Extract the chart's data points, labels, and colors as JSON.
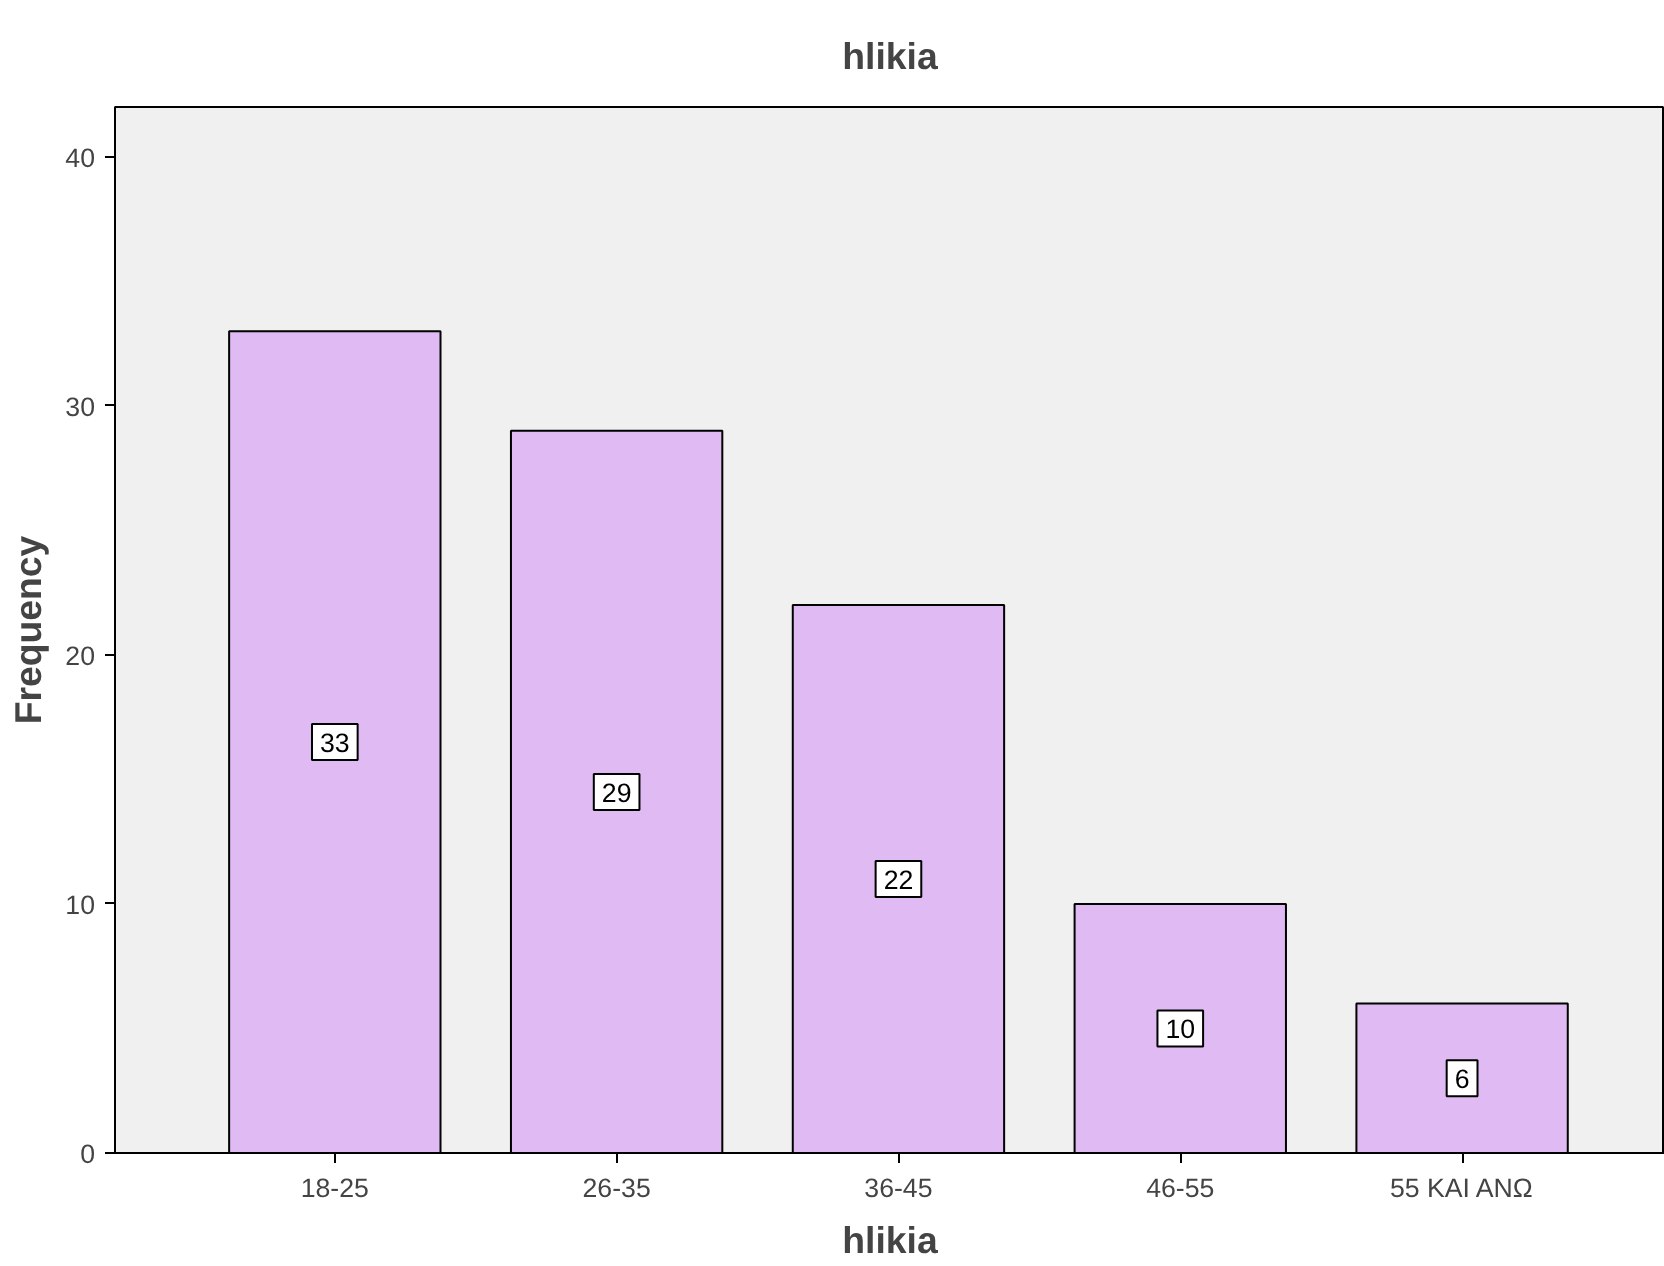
{
  "chart_data": {
    "type": "bar",
    "title": "hlikia",
    "xlabel": "hlikia",
    "ylabel": "Frequency",
    "categories": [
      "18-25",
      "26-35",
      "36-45",
      "46-55",
      "55 ΚΑΙ ΑΝΩ"
    ],
    "values": [
      33,
      29,
      22,
      10,
      6
    ],
    "color": "#dfbaf3",
    "ylim": [
      0,
      42
    ],
    "yticks": [
      0,
      10,
      20,
      30,
      40
    ],
    "grid": false,
    "data_labels": true
  }
}
